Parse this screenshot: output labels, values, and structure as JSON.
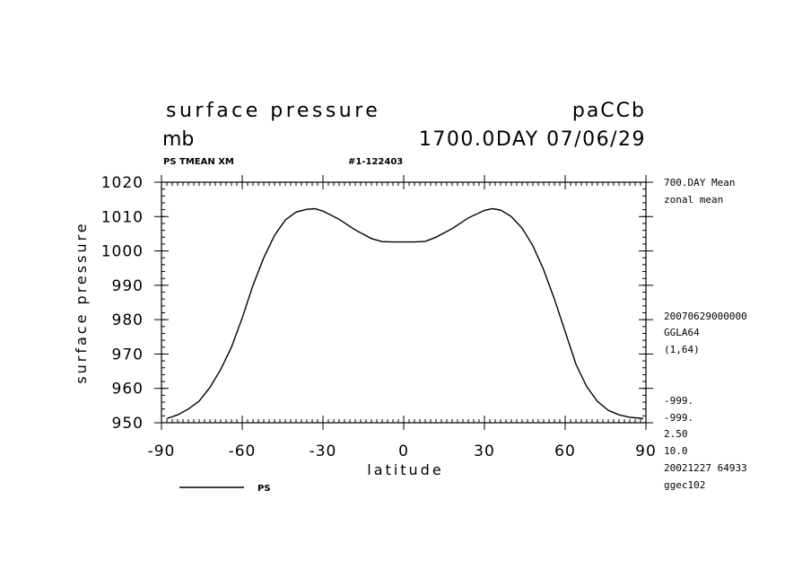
{
  "header": {
    "title": "surface pressure",
    "run_id": "paCCb",
    "units": "mb",
    "time": "1700.0DAY 07/06/29",
    "var_desc": "PS TMEAN XM",
    "run_code": "#1-122403"
  },
  "side_info": {
    "mean_label": "700.DAY Mean",
    "zonal_label": "zonal mean",
    "date_code": "20070629000000",
    "grid": "GGLA64",
    "index": "(1,64)",
    "missing1": "-999.",
    "missing2": "-999.",
    "v1": "2.50",
    "v2": "10.0",
    "stamp": "20021227  64933",
    "machine": "ggec102"
  },
  "chart_data": {
    "type": "line",
    "xlabel": "latitude",
    "ylabel": "surface pressure",
    "xlim": [
      -90,
      90
    ],
    "ylim": [
      950,
      1020
    ],
    "xticks": [
      -90,
      -60,
      -30,
      0,
      30,
      60,
      90
    ],
    "yticks": [
      950,
      960,
      970,
      980,
      990,
      1000,
      1010,
      1020
    ],
    "grid": false,
    "legend": "bottom-left",
    "series": [
      {
        "name": "PS",
        "color": "#000000",
        "x": [
          -88,
          -84,
          -80,
          -76,
          -72,
          -68,
          -64,
          -60,
          -56,
          -52,
          -48,
          -44,
          -40,
          -36,
          -33,
          -30,
          -24,
          -18,
          -12,
          -8,
          -4,
          0,
          4,
          8,
          12,
          18,
          24,
          30,
          33,
          36,
          40,
          44,
          48,
          52,
          56,
          60,
          64,
          68,
          72,
          76,
          80,
          84,
          88,
          89
        ],
        "y": [
          951.2,
          952.3,
          954.0,
          956.3,
          960.3,
          965.5,
          972.0,
          980.5,
          990.0,
          998.0,
          1004.5,
          1009.0,
          1011.3,
          1012.1,
          1012.3,
          1011.6,
          1009.2,
          1006.1,
          1003.6,
          1002.7,
          1002.6,
          1002.6,
          1002.6,
          1002.8,
          1004.0,
          1006.5,
          1009.6,
          1011.8,
          1012.3,
          1011.9,
          1010.0,
          1006.6,
          1001.5,
          994.5,
          986.0,
          976.5,
          967.0,
          960.5,
          956.2,
          953.6,
          952.3,
          951.6,
          951.3,
          951.2
        ]
      }
    ]
  }
}
